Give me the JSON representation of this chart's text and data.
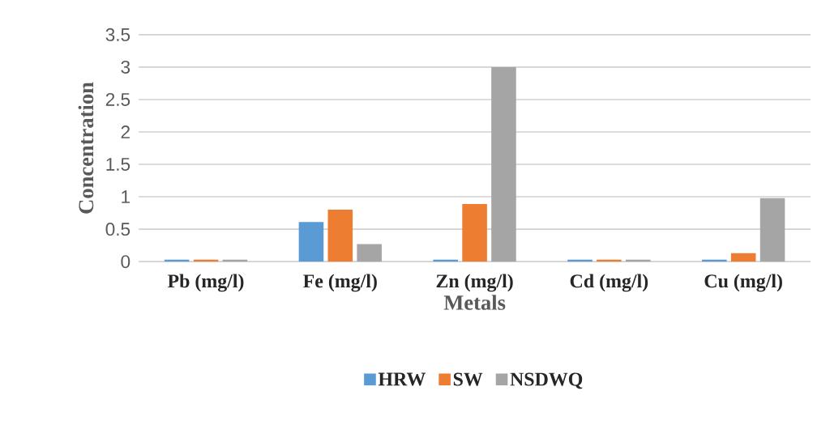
{
  "chart_data": {
    "type": "bar",
    "xlabel": "Metals",
    "ylabel": "Concentration",
    "categories": [
      "Pb (mg/l)",
      "Fe (mg/l)",
      "Zn (mg/l)",
      "Cd (mg/l)",
      "Cu (mg/l)"
    ],
    "series": [
      {
        "name": "HRW",
        "color": "#5b9bd5",
        "values": [
          0.03,
          0.61,
          0.03,
          0.03,
          0.03
        ]
      },
      {
        "name": "SW",
        "color": "#ed7d31",
        "values": [
          0.03,
          0.8,
          0.89,
          0.03,
          0.13
        ]
      },
      {
        "name": "NSDWQ",
        "color": "#a5a5a5",
        "values": [
          0.03,
          0.27,
          3,
          0.03,
          0.98
        ]
      }
    ],
    "ylim": [
      0,
      3.5
    ],
    "yticks": [
      0,
      0.5,
      1,
      1.5,
      2,
      2.5,
      3,
      3.5
    ],
    "grid": "y",
    "legend": "bottom"
  }
}
